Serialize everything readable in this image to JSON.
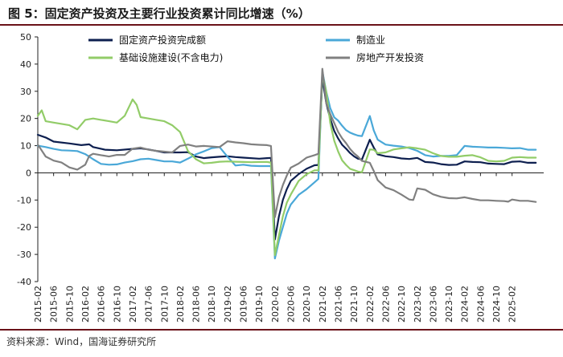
{
  "header": {
    "title": "图 5：固定资产投资及主要行业投资累计同比增速（%）"
  },
  "footer": {
    "source": "资料来源：Wind，国海证券研究所"
  },
  "colors": {
    "accent_rule": "#6a1218"
  },
  "chart_data": {
    "type": "line",
    "title": "图 5：固定资产投资及主要行业投资累计同比增速（%）",
    "xlabel": "",
    "ylabel": "",
    "ylim": [
      -40,
      50
    ],
    "yticks": [
      -40,
      -30,
      -20,
      -10,
      0,
      10,
      20,
      30,
      40,
      50
    ],
    "xlim": [
      0,
      128
    ],
    "xticks": [
      {
        "i": 0,
        "label": "2015-02"
      },
      {
        "i": 4,
        "label": "2015-06"
      },
      {
        "i": 8,
        "label": "2015-10"
      },
      {
        "i": 12,
        "label": "2016-02"
      },
      {
        "i": 16,
        "label": "2016-06"
      },
      {
        "i": 20,
        "label": "2016-10"
      },
      {
        "i": 24,
        "label": "2017-02"
      },
      {
        "i": 28,
        "label": "2017-06"
      },
      {
        "i": 32,
        "label": "2017-10"
      },
      {
        "i": 36,
        "label": "2018-02"
      },
      {
        "i": 40,
        "label": "2018-06"
      },
      {
        "i": 44,
        "label": "2018-10"
      },
      {
        "i": 48,
        "label": "2019-02"
      },
      {
        "i": 52,
        "label": "2019-06"
      },
      {
        "i": 56,
        "label": "2019-10"
      },
      {
        "i": 60,
        "label": "2020-02"
      },
      {
        "i": 64,
        "label": "2020-06"
      },
      {
        "i": 68,
        "label": "2020-10"
      },
      {
        "i": 72,
        "label": "2021-02"
      },
      {
        "i": 76,
        "label": "2021-06"
      },
      {
        "i": 80,
        "label": "2021-10"
      },
      {
        "i": 84,
        "label": "2022-02"
      },
      {
        "i": 88,
        "label": "2022-06"
      },
      {
        "i": 92,
        "label": "2022-10"
      },
      {
        "i": 96,
        "label": "2023-02"
      },
      {
        "i": 100,
        "label": "2023-06"
      },
      {
        "i": 104,
        "label": "2023-10"
      },
      {
        "i": 108,
        "label": "2024-02"
      },
      {
        "i": 112,
        "label": "2024-06"
      },
      {
        "i": 116,
        "label": "2024-10"
      },
      {
        "i": 120,
        "label": "2025-02"
      }
    ],
    "legend": "top",
    "grid": false,
    "series": [
      {
        "name": "固定资产投资完成额",
        "color": "#0d1f4f",
        "width": 2.2,
        "points": [
          [
            0,
            14
          ],
          [
            2,
            13
          ],
          [
            4,
            11.5
          ],
          [
            8,
            10.8
          ],
          [
            11,
            10.2
          ],
          [
            13,
            10.5
          ],
          [
            14,
            9.5
          ],
          [
            17,
            8.5
          ],
          [
            20,
            8.3
          ],
          [
            24,
            8.8
          ],
          [
            26,
            9
          ],
          [
            28,
            8.6
          ],
          [
            32,
            7.5
          ],
          [
            36,
            7.5
          ],
          [
            38,
            7.6
          ],
          [
            40,
            6
          ],
          [
            42,
            5.4
          ],
          [
            44,
            5.7
          ],
          [
            46,
            5.9
          ],
          [
            48,
            6.1
          ],
          [
            50,
            5.8
          ],
          [
            52,
            5.6
          ],
          [
            56,
            5.2
          ],
          [
            58,
            5.4
          ],
          [
            59,
            5.5
          ],
          [
            60,
            -24.5
          ],
          [
            61,
            -16
          ],
          [
            62,
            -10
          ],
          [
            63,
            -6
          ],
          [
            64,
            -3
          ],
          [
            66,
            -0.5
          ],
          [
            68,
            1.5
          ],
          [
            70,
            2.8
          ],
          [
            71,
            2.9
          ],
          [
            72,
            35
          ],
          [
            73,
            25.6
          ],
          [
            74,
            19.9
          ],
          [
            75,
            15.4
          ],
          [
            76,
            12.6
          ],
          [
            77,
            10.3
          ],
          [
            78,
            8.9
          ],
          [
            79,
            7.3
          ],
          [
            80,
            6.1
          ],
          [
            81,
            5.2
          ],
          [
            82,
            4.9
          ],
          [
            84,
            12.2
          ],
          [
            85,
            9.3
          ],
          [
            86,
            6.8
          ],
          [
            88,
            6.1
          ],
          [
            90,
            5.8
          ],
          [
            92,
            5.3
          ],
          [
            94,
            5.1
          ],
          [
            96,
            5.5
          ],
          [
            98,
            4
          ],
          [
            100,
            3.8
          ],
          [
            102,
            3.2
          ],
          [
            104,
            2.9
          ],
          [
            106,
            3
          ],
          [
            108,
            4.2
          ],
          [
            110,
            4
          ],
          [
            112,
            3.9
          ],
          [
            114,
            3.4
          ],
          [
            116,
            3.3
          ],
          [
            118,
            3.2
          ],
          [
            120,
            4.1
          ],
          [
            122,
            4.2
          ],
          [
            124,
            3.7
          ],
          [
            126,
            3.7
          ]
        ]
      },
      {
        "name": "制造业",
        "color": "#4aa8d8",
        "width": 2.2,
        "points": [
          [
            0,
            10
          ],
          [
            2,
            9.5
          ],
          [
            4,
            8.8
          ],
          [
            6,
            8.3
          ],
          [
            8,
            8.2
          ],
          [
            10,
            8
          ],
          [
            12,
            6.9
          ],
          [
            14,
            5
          ],
          [
            16,
            3.3
          ],
          [
            18,
            3
          ],
          [
            20,
            3.1
          ],
          [
            22,
            3.8
          ],
          [
            24,
            4.3
          ],
          [
            26,
            5
          ],
          [
            28,
            5.2
          ],
          [
            30,
            4.7
          ],
          [
            32,
            4.2
          ],
          [
            34,
            4.2
          ],
          [
            36,
            3.8
          ],
          [
            38,
            5.2
          ],
          [
            40,
            6.8
          ],
          [
            42,
            7.9
          ],
          [
            44,
            9.1
          ],
          [
            46,
            9.5
          ],
          [
            48,
            5.9
          ],
          [
            50,
            2.7
          ],
          [
            52,
            3
          ],
          [
            54,
            2.6
          ],
          [
            56,
            2.5
          ],
          [
            58,
            2.5
          ],
          [
            59,
            2.5
          ],
          [
            60,
            -31.5
          ],
          [
            61,
            -25
          ],
          [
            62,
            -20
          ],
          [
            63,
            -15
          ],
          [
            64,
            -11.7
          ],
          [
            66,
            -8.1
          ],
          [
            68,
            -6
          ],
          [
            70,
            -3.5
          ],
          [
            71,
            -2.2
          ],
          [
            72,
            37.3
          ],
          [
            73,
            29.8
          ],
          [
            74,
            23.8
          ],
          [
            75,
            20.4
          ],
          [
            76,
            19.2
          ],
          [
            77,
            17.3
          ],
          [
            78,
            15.7
          ],
          [
            79,
            14.8
          ],
          [
            80,
            14.2
          ],
          [
            81,
            13.7
          ],
          [
            82,
            13.5
          ],
          [
            84,
            20.9
          ],
          [
            85,
            15.6
          ],
          [
            86,
            12.2
          ],
          [
            88,
            10.4
          ],
          [
            90,
            10
          ],
          [
            92,
            9.7
          ],
          [
            94,
            9.1
          ],
          [
            96,
            8.1
          ],
          [
            98,
            6.5
          ],
          [
            100,
            6
          ],
          [
            102,
            6.2
          ],
          [
            104,
            6.2
          ],
          [
            106,
            6.5
          ],
          [
            108,
            9.9
          ],
          [
            110,
            9.6
          ],
          [
            112,
            9.5
          ],
          [
            114,
            9.3
          ],
          [
            116,
            9.3
          ],
          [
            118,
            9.2
          ],
          [
            120,
            9
          ],
          [
            122,
            9.1
          ],
          [
            124,
            8.5
          ],
          [
            126,
            8.5
          ]
        ]
      },
      {
        "name": "基础设施建设(不含电力)",
        "color": "#92cc68",
        "width": 2.2,
        "points": [
          [
            0,
            21
          ],
          [
            1,
            23
          ],
          [
            2,
            19
          ],
          [
            4,
            18.5
          ],
          [
            6,
            18
          ],
          [
            8,
            17.5
          ],
          [
            10,
            16
          ],
          [
            12,
            19.5
          ],
          [
            14,
            20
          ],
          [
            16,
            19.5
          ],
          [
            18,
            19
          ],
          [
            20,
            18.5
          ],
          [
            22,
            21
          ],
          [
            24,
            27
          ],
          [
            25,
            25
          ],
          [
            26,
            20.5
          ],
          [
            28,
            20
          ],
          [
            30,
            19.5
          ],
          [
            32,
            19
          ],
          [
            34,
            17.5
          ],
          [
            36,
            15
          ],
          [
            38,
            8
          ],
          [
            40,
            5
          ],
          [
            42,
            3.5
          ],
          [
            44,
            3.7
          ],
          [
            46,
            4.1
          ],
          [
            48,
            4.2
          ],
          [
            50,
            4.1
          ],
          [
            52,
            4
          ],
          [
            54,
            3.9
          ],
          [
            56,
            4
          ],
          [
            58,
            4
          ],
          [
            59,
            3.8
          ],
          [
            60,
            -30.3
          ],
          [
            61,
            -23
          ],
          [
            62,
            -16
          ],
          [
            63,
            -11
          ],
          [
            64,
            -8
          ],
          [
            66,
            -3
          ],
          [
            68,
            -0.5
          ],
          [
            70,
            0.9
          ],
          [
            71,
            0.9
          ],
          [
            72,
            36.6
          ],
          [
            73,
            29.7
          ],
          [
            74,
            18.4
          ],
          [
            75,
            11.8
          ],
          [
            76,
            7.8
          ],
          [
            77,
            4.6
          ],
          [
            78,
            2.9
          ],
          [
            79,
            1.5
          ],
          [
            80,
            1
          ],
          [
            81,
            0.5
          ],
          [
            82,
            0.2
          ],
          [
            84,
            8.6
          ],
          [
            85,
            8.5
          ],
          [
            86,
            7.2
          ],
          [
            88,
            7.5
          ],
          [
            90,
            8.6
          ],
          [
            92,
            9
          ],
          [
            94,
            9.4
          ],
          [
            96,
            9
          ],
          [
            98,
            8.5
          ],
          [
            100,
            7.2
          ],
          [
            102,
            6.2
          ],
          [
            104,
            5.9
          ],
          [
            106,
            5.9
          ],
          [
            108,
            6.3
          ],
          [
            110,
            6.5
          ],
          [
            112,
            5.7
          ],
          [
            114,
            4.4
          ],
          [
            116,
            4.2
          ],
          [
            118,
            4.4
          ],
          [
            120,
            5.6
          ],
          [
            122,
            5.8
          ],
          [
            124,
            5.6
          ],
          [
            126,
            5.6
          ]
        ]
      },
      {
        "name": "房地产开发投资",
        "color": "#808080",
        "width": 2.2,
        "points": [
          [
            0,
            10.4
          ],
          [
            2,
            6
          ],
          [
            4,
            4.5
          ],
          [
            6,
            3.8
          ],
          [
            8,
            2
          ],
          [
            10,
            1.2
          ],
          [
            12,
            3
          ],
          [
            13,
            6.2
          ],
          [
            14,
            7
          ],
          [
            16,
            6.5
          ],
          [
            18,
            6
          ],
          [
            20,
            6.6
          ],
          [
            22,
            6.6
          ],
          [
            24,
            8.9
          ],
          [
            26,
            9.3
          ],
          [
            28,
            8.5
          ],
          [
            30,
            8.1
          ],
          [
            32,
            7.8
          ],
          [
            34,
            7.5
          ],
          [
            36,
            9.9
          ],
          [
            38,
            10.4
          ],
          [
            40,
            9.7
          ],
          [
            42,
            9.9
          ],
          [
            44,
            9.7
          ],
          [
            46,
            9.5
          ],
          [
            48,
            11.6
          ],
          [
            50,
            11.2
          ],
          [
            52,
            10.9
          ],
          [
            54,
            10.5
          ],
          [
            56,
            10.3
          ],
          [
            58,
            10.2
          ],
          [
            59,
            9.9
          ],
          [
            60,
            -16.3
          ],
          [
            61,
            -9
          ],
          [
            62,
            -4.5
          ],
          [
            63,
            -1
          ],
          [
            64,
            1.9
          ],
          [
            66,
            3.4
          ],
          [
            68,
            5.6
          ],
          [
            70,
            6.5
          ],
          [
            71,
            7
          ],
          [
            72,
            38.3
          ],
          [
            73,
            25.6
          ],
          [
            74,
            21.6
          ],
          [
            75,
            18.3
          ],
          [
            76,
            15
          ],
          [
            77,
            12.7
          ],
          [
            78,
            10.9
          ],
          [
            79,
            8.8
          ],
          [
            80,
            7.2
          ],
          [
            81,
            6
          ],
          [
            82,
            4.4
          ],
          [
            84,
            3.7
          ],
          [
            85,
            0.7
          ],
          [
            86,
            -2.7
          ],
          [
            88,
            -5.4
          ],
          [
            90,
            -6.4
          ],
          [
            92,
            -8
          ],
          [
            94,
            -9.8
          ],
          [
            95,
            -10
          ],
          [
            96,
            -5.7
          ],
          [
            98,
            -6.2
          ],
          [
            100,
            -7.9
          ],
          [
            102,
            -8.8
          ],
          [
            104,
            -9.3
          ],
          [
            106,
            -9.4
          ],
          [
            108,
            -9
          ],
          [
            110,
            -9.6
          ],
          [
            112,
            -10.1
          ],
          [
            114,
            -10.1
          ],
          [
            116,
            -10.3
          ],
          [
            118,
            -10.4
          ],
          [
            119,
            -10.6
          ],
          [
            120,
            -9.8
          ],
          [
            122,
            -10.3
          ],
          [
            124,
            -10.3
          ],
          [
            126,
            -10.7
          ]
        ]
      }
    ]
  }
}
